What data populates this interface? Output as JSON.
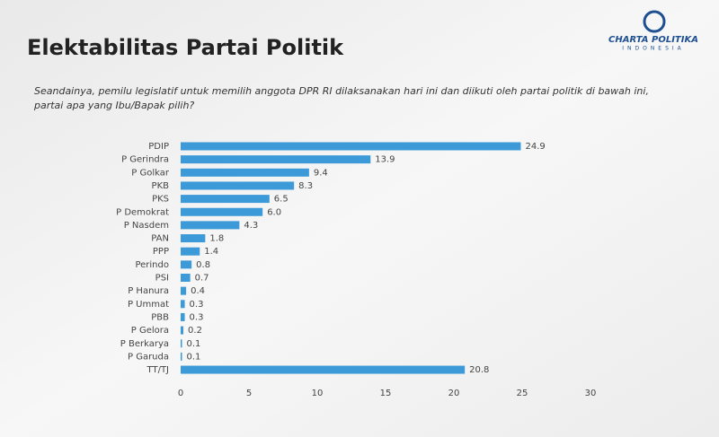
{
  "chart_data": {
    "type": "bar",
    "orientation": "horizontal",
    "title": "Elektabilitas Partai Politik",
    "subtitle": "Seandainya, pemilu legislatif untuk memilih anggota DPR RI dilaksanakan hari ini dan diikuti oleh partai politik di bawah ini, partai apa yang Ibu/Bapak pilih?",
    "logo": {
      "name": "CHARTA POLITIKA",
      "sub": "INDONESIA"
    },
    "categories": [
      "PDIP",
      "P Gerindra",
      "P Golkar",
      "PKB",
      "PKS",
      "P Demokrat",
      "P Nasdem",
      "PAN",
      "PPP",
      "Perindo",
      "PSI",
      "P Hanura",
      "P Ummat",
      "PBB",
      "P Gelora",
      "P Berkarya",
      "P Garuda",
      "TT/TJ"
    ],
    "values": [
      24.9,
      13.9,
      9.4,
      8.3,
      6.5,
      6.0,
      4.3,
      1.8,
      1.4,
      0.8,
      0.7,
      0.4,
      0.3,
      0.3,
      0.2,
      0.1,
      0.1,
      20.8
    ],
    "value_labels": [
      "24.9",
      "13.9",
      "9.4",
      "8.3",
      "6.5",
      "6.0",
      "4.3",
      "1.8",
      "1.4",
      "0.8",
      "0.7",
      "0.4",
      "0.3",
      "0.3",
      "0.2",
      "0.1",
      "0.1",
      "20.8"
    ],
    "color": "#3d9ad8",
    "xlim": [
      0,
      30
    ],
    "xticks": [
      0,
      5,
      10,
      15,
      20,
      25,
      30
    ],
    "grid": false
  }
}
